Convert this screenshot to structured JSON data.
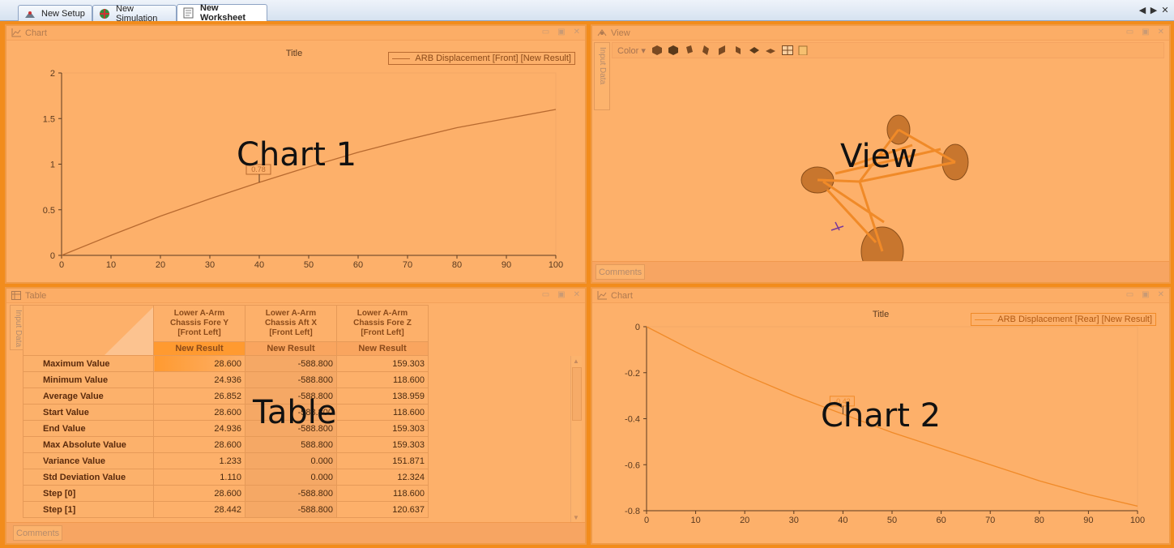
{
  "tabs": [
    {
      "label": "New Setup",
      "icon": "setup-icon"
    },
    {
      "label": "New Simulation",
      "icon": "simulation-icon"
    },
    {
      "label": "New Worksheet",
      "icon": "worksheet-icon"
    }
  ],
  "tab_controls": {
    "prev": "◀",
    "next": "▶",
    "close": "✕"
  },
  "panels": {
    "chart1": {
      "header": "Chart",
      "title": "Title",
      "legend": "ARB Displacement [Front] [New Result]",
      "overlay": "Chart 1",
      "marker_label": "0.78"
    },
    "view": {
      "header": "View",
      "side_tab": "Input Data",
      "toolbar_label": "Color",
      "overlay": "View",
      "comments": "Comments"
    },
    "table": {
      "header": "Table",
      "side_tab": "Input Data",
      "overlay": "Table",
      "comments": "Comments",
      "columns": [
        {
          "line1": "Lower A-Arm",
          "line2": "Chassis Fore Y",
          "line3": "[Front Left]",
          "sub": "New Result"
        },
        {
          "line1": "Lower A-Arm",
          "line2": "Chassis Aft X",
          "line3": "[Front Left]",
          "sub": "New Result"
        },
        {
          "line1": "Lower A-Arm",
          "line2": "Chassis Fore Z",
          "line3": "[Front Left]",
          "sub": "New Result"
        }
      ],
      "rows": [
        {
          "label": "Maximum Value",
          "values": [
            "28.600",
            "-588.800",
            "159.303"
          ]
        },
        {
          "label": "Minimum Value",
          "values": [
            "24.936",
            "-588.800",
            "118.600"
          ]
        },
        {
          "label": "Average Value",
          "values": [
            "26.852",
            "-588.800",
            "138.959"
          ]
        },
        {
          "label": "Start Value",
          "values": [
            "28.600",
            "-588.800",
            "118.600"
          ]
        },
        {
          "label": "End Value",
          "values": [
            "24.936",
            "-588.800",
            "159.303"
          ]
        },
        {
          "label": "Max Absolute Value",
          "values": [
            "28.600",
            "588.800",
            "159.303"
          ]
        },
        {
          "label": "Variance Value",
          "values": [
            "1.233",
            "0.000",
            "151.871"
          ]
        },
        {
          "label": "Std Deviation Value",
          "values": [
            "1.110",
            "0.000",
            "12.324"
          ]
        },
        {
          "label": "Step [0]",
          "values": [
            "28.600",
            "-588.800",
            "118.600"
          ]
        },
        {
          "label": "Step [1]",
          "values": [
            "28.442",
            "-588.800",
            "120.637"
          ]
        }
      ]
    },
    "chart2": {
      "header": "Chart",
      "title": "Title",
      "legend": "ARB Displacement [Rear] [New Result]",
      "overlay": "Chart 2",
      "marker_label": "-0.42"
    }
  },
  "colors": {
    "accent": "#f28c1c",
    "panel_bg": "#fdb06a",
    "line1": "#b86a30",
    "line2": "#f08a28"
  },
  "chart_data": [
    {
      "type": "line",
      "title": "Title",
      "xlabel": "",
      "ylabel": "",
      "xlim": [
        0,
        100
      ],
      "ylim": [
        0,
        2
      ],
      "xticks": [
        0,
        10,
        20,
        30,
        40,
        50,
        60,
        70,
        80,
        90,
        100
      ],
      "yticks": [
        0,
        0.5,
        1,
        1.5,
        2
      ],
      "ytick_labels": [
        "0",
        "0.5",
        "1",
        "1.5",
        "2"
      ],
      "series": [
        {
          "name": "ARB Displacement [Front] [New Result]",
          "x": [
            0,
            10,
            20,
            30,
            40,
            50,
            60,
            70,
            80,
            90,
            100
          ],
          "y": [
            0,
            0.22,
            0.43,
            0.62,
            0.8,
            0.97,
            1.13,
            1.27,
            1.4,
            1.5,
            1.6
          ]
        }
      ],
      "legend": "top-right",
      "grid": false
    },
    {
      "type": "line",
      "title": "Title",
      "xlabel": "",
      "ylabel": "",
      "xlim": [
        0,
        100
      ],
      "ylim": [
        -0.8,
        0
      ],
      "xticks": [
        0,
        10,
        20,
        30,
        40,
        50,
        60,
        70,
        80,
        90,
        100
      ],
      "yticks": [
        0,
        -0.2,
        -0.4,
        -0.6,
        -0.8
      ],
      "ytick_labels": [
        "0",
        "-0.2",
        "-0.4",
        "-0.6",
        "-0.8"
      ],
      "series": [
        {
          "name": "ARB Displacement [Rear] [New Result]",
          "x": [
            0,
            10,
            20,
            30,
            40,
            50,
            60,
            70,
            80,
            90,
            100
          ],
          "y": [
            0,
            -0.11,
            -0.21,
            -0.3,
            -0.38,
            -0.46,
            -0.53,
            -0.6,
            -0.67,
            -0.73,
            -0.78
          ]
        }
      ],
      "legend": "top-right",
      "grid": false
    }
  ]
}
